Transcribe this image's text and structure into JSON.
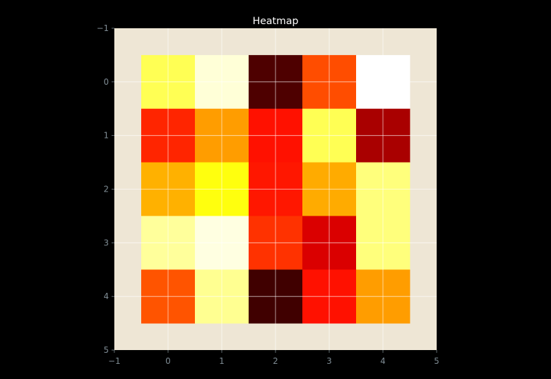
{
  "chart_data": {
    "type": "heatmap",
    "title": "Heatmap",
    "xlabel": "",
    "ylabel": "",
    "xlim": [
      -1,
      5
    ],
    "ylim": [
      5,
      -1
    ],
    "x_ticks": [
      -1,
      0,
      1,
      2,
      3,
      4,
      5
    ],
    "y_ticks": [
      -1,
      0,
      1,
      2,
      3,
      4,
      5
    ],
    "x_tick_labels": [
      "−1",
      "0",
      "1",
      "2",
      "3",
      "4",
      "5"
    ],
    "y_tick_labels": [
      "−1",
      "0",
      "1",
      "2",
      "3",
      "4",
      "5"
    ],
    "grid": true,
    "colormap": "hot",
    "rows": 5,
    "cols": 5,
    "values": [
      [
        0.83,
        0.96,
        0.07,
        0.48,
        1.0
      ],
      [
        0.42,
        0.6,
        0.39,
        0.83,
        0.2
      ],
      [
        0.63,
        0.76,
        0.4,
        0.62,
        0.87
      ],
      [
        0.9,
        0.97,
        0.44,
        0.27,
        0.87
      ],
      [
        0.49,
        0.89,
        0.05,
        0.39,
        0.6
      ]
    ]
  },
  "colors": {
    "figure_background": "#000000",
    "axes_background": "#eee6d5",
    "grid": "#ffffff",
    "tick_color": "#7f8c94",
    "title_color": "#ffffff"
  }
}
